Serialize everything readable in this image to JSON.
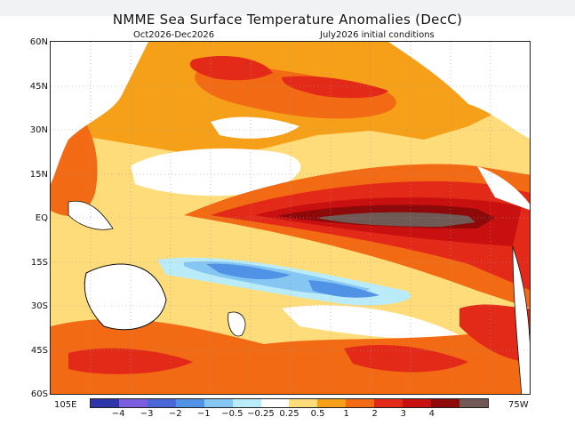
{
  "title": "NMME Sea Surface Temperature Anomalies (DecC)",
  "subtitle_left": "Oct2026-Dec2026",
  "subtitle_right": "July2026 initial conditions",
  "lat_labels": [
    "60N",
    "45N",
    "30N",
    "15N",
    "EQ",
    "15S",
    "30S",
    "45S",
    "60S"
  ],
  "lon_labels": {
    "left": "105E",
    "right": "75W"
  },
  "colorbar": {
    "colors": [
      "#2c34a8",
      "#7b5ee0",
      "#4b66d8",
      "#4f92e6",
      "#86c6f2",
      "#b9ecf8",
      "#ffffff",
      "#ffdc7a",
      "#f5a018",
      "#f26a14",
      "#e32a18",
      "#c81010",
      "#8e0a0a",
      "#715a55"
    ],
    "labels": [
      "−4",
      "−3",
      "−2",
      "−1",
      "−0.5",
      "−0.25",
      "0.25",
      "0.5",
      "1",
      "2",
      "3",
      "4"
    ]
  }
}
